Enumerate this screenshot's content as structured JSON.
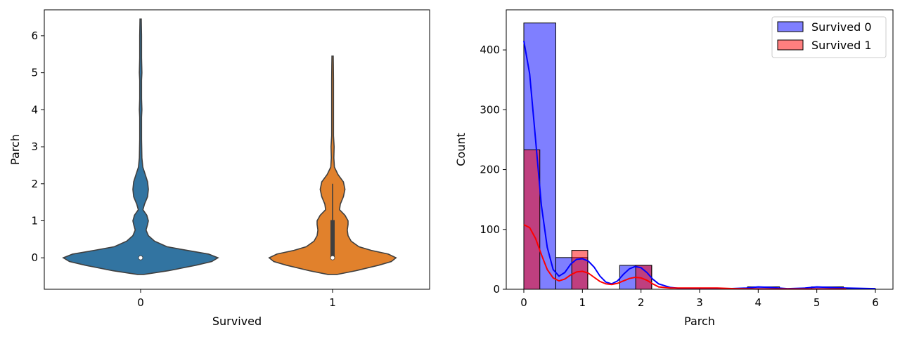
{
  "chart_data": [
    {
      "type": "violin",
      "xlabel": "Survived",
      "ylabel": "Parch",
      "categories": [
        "0",
        "1"
      ],
      "category_values": [
        0,
        1
      ],
      "colors": [
        "#3274a1",
        "#e1812c"
      ],
      "ylim": [
        -0.85,
        6.7
      ],
      "yticks": [
        0,
        1,
        2,
        3,
        4,
        5,
        6
      ],
      "xticks": [
        0,
        1
      ],
      "violins": [
        {
          "name": "0",
          "median": 0,
          "q1": 0,
          "q3": 0,
          "whisker_low": 0,
          "whisker_high": 0,
          "profile": [
            [
              -0.45,
              0.02
            ],
            [
              -0.35,
              0.18
            ],
            [
              -0.2,
              0.36
            ],
            [
              -0.1,
              0.46
            ],
            [
              0,
              0.5
            ],
            [
              0.1,
              0.44
            ],
            [
              0.2,
              0.3
            ],
            [
              0.3,
              0.17
            ],
            [
              0.45,
              0.09
            ],
            [
              0.6,
              0.05
            ],
            [
              0.75,
              0.035
            ],
            [
              0.9,
              0.045
            ],
            [
              1.0,
              0.05
            ],
            [
              1.15,
              0.04
            ],
            [
              1.3,
              0.015
            ],
            [
              1.45,
              0.025
            ],
            [
              1.65,
              0.045
            ],
            [
              1.85,
              0.05
            ],
            [
              2.05,
              0.045
            ],
            [
              2.25,
              0.03
            ],
            [
              2.45,
              0.014
            ],
            [
              2.7,
              0.008
            ],
            [
              3.2,
              0.006
            ],
            [
              3.8,
              0.006
            ],
            [
              4.0,
              0.008
            ],
            [
              4.3,
              0.006
            ],
            [
              4.8,
              0.006
            ],
            [
              5.0,
              0.008
            ],
            [
              5.4,
              0.006
            ],
            [
              6.0,
              0.006
            ],
            [
              6.45,
              0.004
            ]
          ]
        },
        {
          "name": "1",
          "median": 0,
          "q1": 0,
          "q3": 1,
          "whisker_low": 0,
          "whisker_high": 2,
          "profile": [
            [
              -0.45,
              0.03
            ],
            [
              -0.35,
              0.15
            ],
            [
              -0.2,
              0.3
            ],
            [
              -0.1,
              0.38
            ],
            [
              0,
              0.41
            ],
            [
              0.1,
              0.36
            ],
            [
              0.2,
              0.25
            ],
            [
              0.3,
              0.17
            ],
            [
              0.45,
              0.12
            ],
            [
              0.6,
              0.1
            ],
            [
              0.75,
              0.095
            ],
            [
              0.9,
              0.1
            ],
            [
              1.0,
              0.1
            ],
            [
              1.15,
              0.08
            ],
            [
              1.3,
              0.045
            ],
            [
              1.45,
              0.05
            ],
            [
              1.65,
              0.07
            ],
            [
              1.85,
              0.08
            ],
            [
              2.05,
              0.07
            ],
            [
              2.25,
              0.035
            ],
            [
              2.45,
              0.012
            ],
            [
              2.7,
              0.008
            ],
            [
              3.0,
              0.01
            ],
            [
              3.3,
              0.006
            ],
            [
              3.8,
              0.006
            ],
            [
              4.3,
              0.006
            ],
            [
              4.8,
              0.006
            ],
            [
              5.2,
              0.005
            ],
            [
              5.45,
              0.004
            ]
          ]
        }
      ]
    },
    {
      "type": "histogram",
      "xlabel": "Parch",
      "ylabel": "Count",
      "xlim": [
        -0.3,
        6.3
      ],
      "ylim": [
        0,
        467
      ],
      "xticks": [
        0,
        1,
        2,
        3,
        4,
        5,
        6
      ],
      "yticks": [
        0,
        100,
        200,
        300,
        400
      ],
      "legend_position": "upper right",
      "series": [
        {
          "name": "Survived 0",
          "color": "#0000ff",
          "bin_edges": [
            0,
            0.545,
            1.09,
            1.636,
            2.182,
            2.727,
            3.273,
            3.818,
            4.364,
            4.909,
            5.455,
            6.0
          ],
          "counts": [
            445,
            53,
            0,
            40,
            0,
            2,
            0,
            4,
            0,
            4,
            1
          ],
          "kde": [
            [
              0,
              415
            ],
            [
              0.1,
              360
            ],
            [
              0.2,
              250
            ],
            [
              0.3,
              140
            ],
            [
              0.4,
              70
            ],
            [
              0.5,
              33
            ],
            [
              0.6,
              22
            ],
            [
              0.7,
              28
            ],
            [
              0.8,
              42
            ],
            [
              0.9,
              50
            ],
            [
              1.0,
              51
            ],
            [
              1.1,
              47
            ],
            [
              1.2,
              37
            ],
            [
              1.3,
              22
            ],
            [
              1.4,
              12
            ],
            [
              1.5,
              9
            ],
            [
              1.6,
              14
            ],
            [
              1.7,
              25
            ],
            [
              1.8,
              34
            ],
            [
              1.9,
              38
            ],
            [
              2.0,
              36
            ],
            [
              2.1,
              28
            ],
            [
              2.2,
              17
            ],
            [
              2.3,
              9
            ],
            [
              2.5,
              3
            ],
            [
              2.7,
              1
            ],
            [
              3.0,
              1
            ],
            [
              3.5,
              1
            ],
            [
              3.8,
              2
            ],
            [
              4.0,
              4
            ],
            [
              4.2,
              3
            ],
            [
              4.5,
              1
            ],
            [
              4.8,
              2
            ],
            [
              5.0,
              4
            ],
            [
              5.2,
              3
            ],
            [
              5.5,
              2
            ],
            [
              6.0,
              1
            ]
          ]
        },
        {
          "name": "Survived 1",
          "color": "#ff0000",
          "bin_edges": [
            0,
            0.273,
            0.545,
            0.818,
            1.091,
            1.364,
            1.636,
            1.909,
            2.182
          ],
          "counts": [
            233,
            0,
            0,
            65,
            0,
            0,
            0,
            40
          ],
          "kde": [
            [
              0,
              108
            ],
            [
              0.1,
              103
            ],
            [
              0.2,
              85
            ],
            [
              0.3,
              58
            ],
            [
              0.4,
              33
            ],
            [
              0.5,
              19
            ],
            [
              0.6,
              14
            ],
            [
              0.7,
              17
            ],
            [
              0.8,
              24
            ],
            [
              0.9,
              29
            ],
            [
              1.0,
              30
            ],
            [
              1.1,
              27
            ],
            [
              1.2,
              20
            ],
            [
              1.3,
              13
            ],
            [
              1.4,
              9
            ],
            [
              1.5,
              8
            ],
            [
              1.6,
              10
            ],
            [
              1.7,
              14
            ],
            [
              1.8,
              18
            ],
            [
              1.9,
              20
            ],
            [
              2.0,
              19
            ],
            [
              2.1,
              15
            ],
            [
              2.2,
              9
            ],
            [
              2.3,
              4
            ],
            [
              2.5,
              2
            ],
            [
              2.8,
              2
            ],
            [
              3.0,
              2
            ],
            [
              3.3,
              2
            ],
            [
              3.6,
              1
            ],
            [
              4.0,
              0.5
            ],
            [
              4.5,
              0.5
            ],
            [
              5.0,
              0.5
            ],
            [
              5.5,
              0.5
            ]
          ]
        }
      ]
    }
  ]
}
